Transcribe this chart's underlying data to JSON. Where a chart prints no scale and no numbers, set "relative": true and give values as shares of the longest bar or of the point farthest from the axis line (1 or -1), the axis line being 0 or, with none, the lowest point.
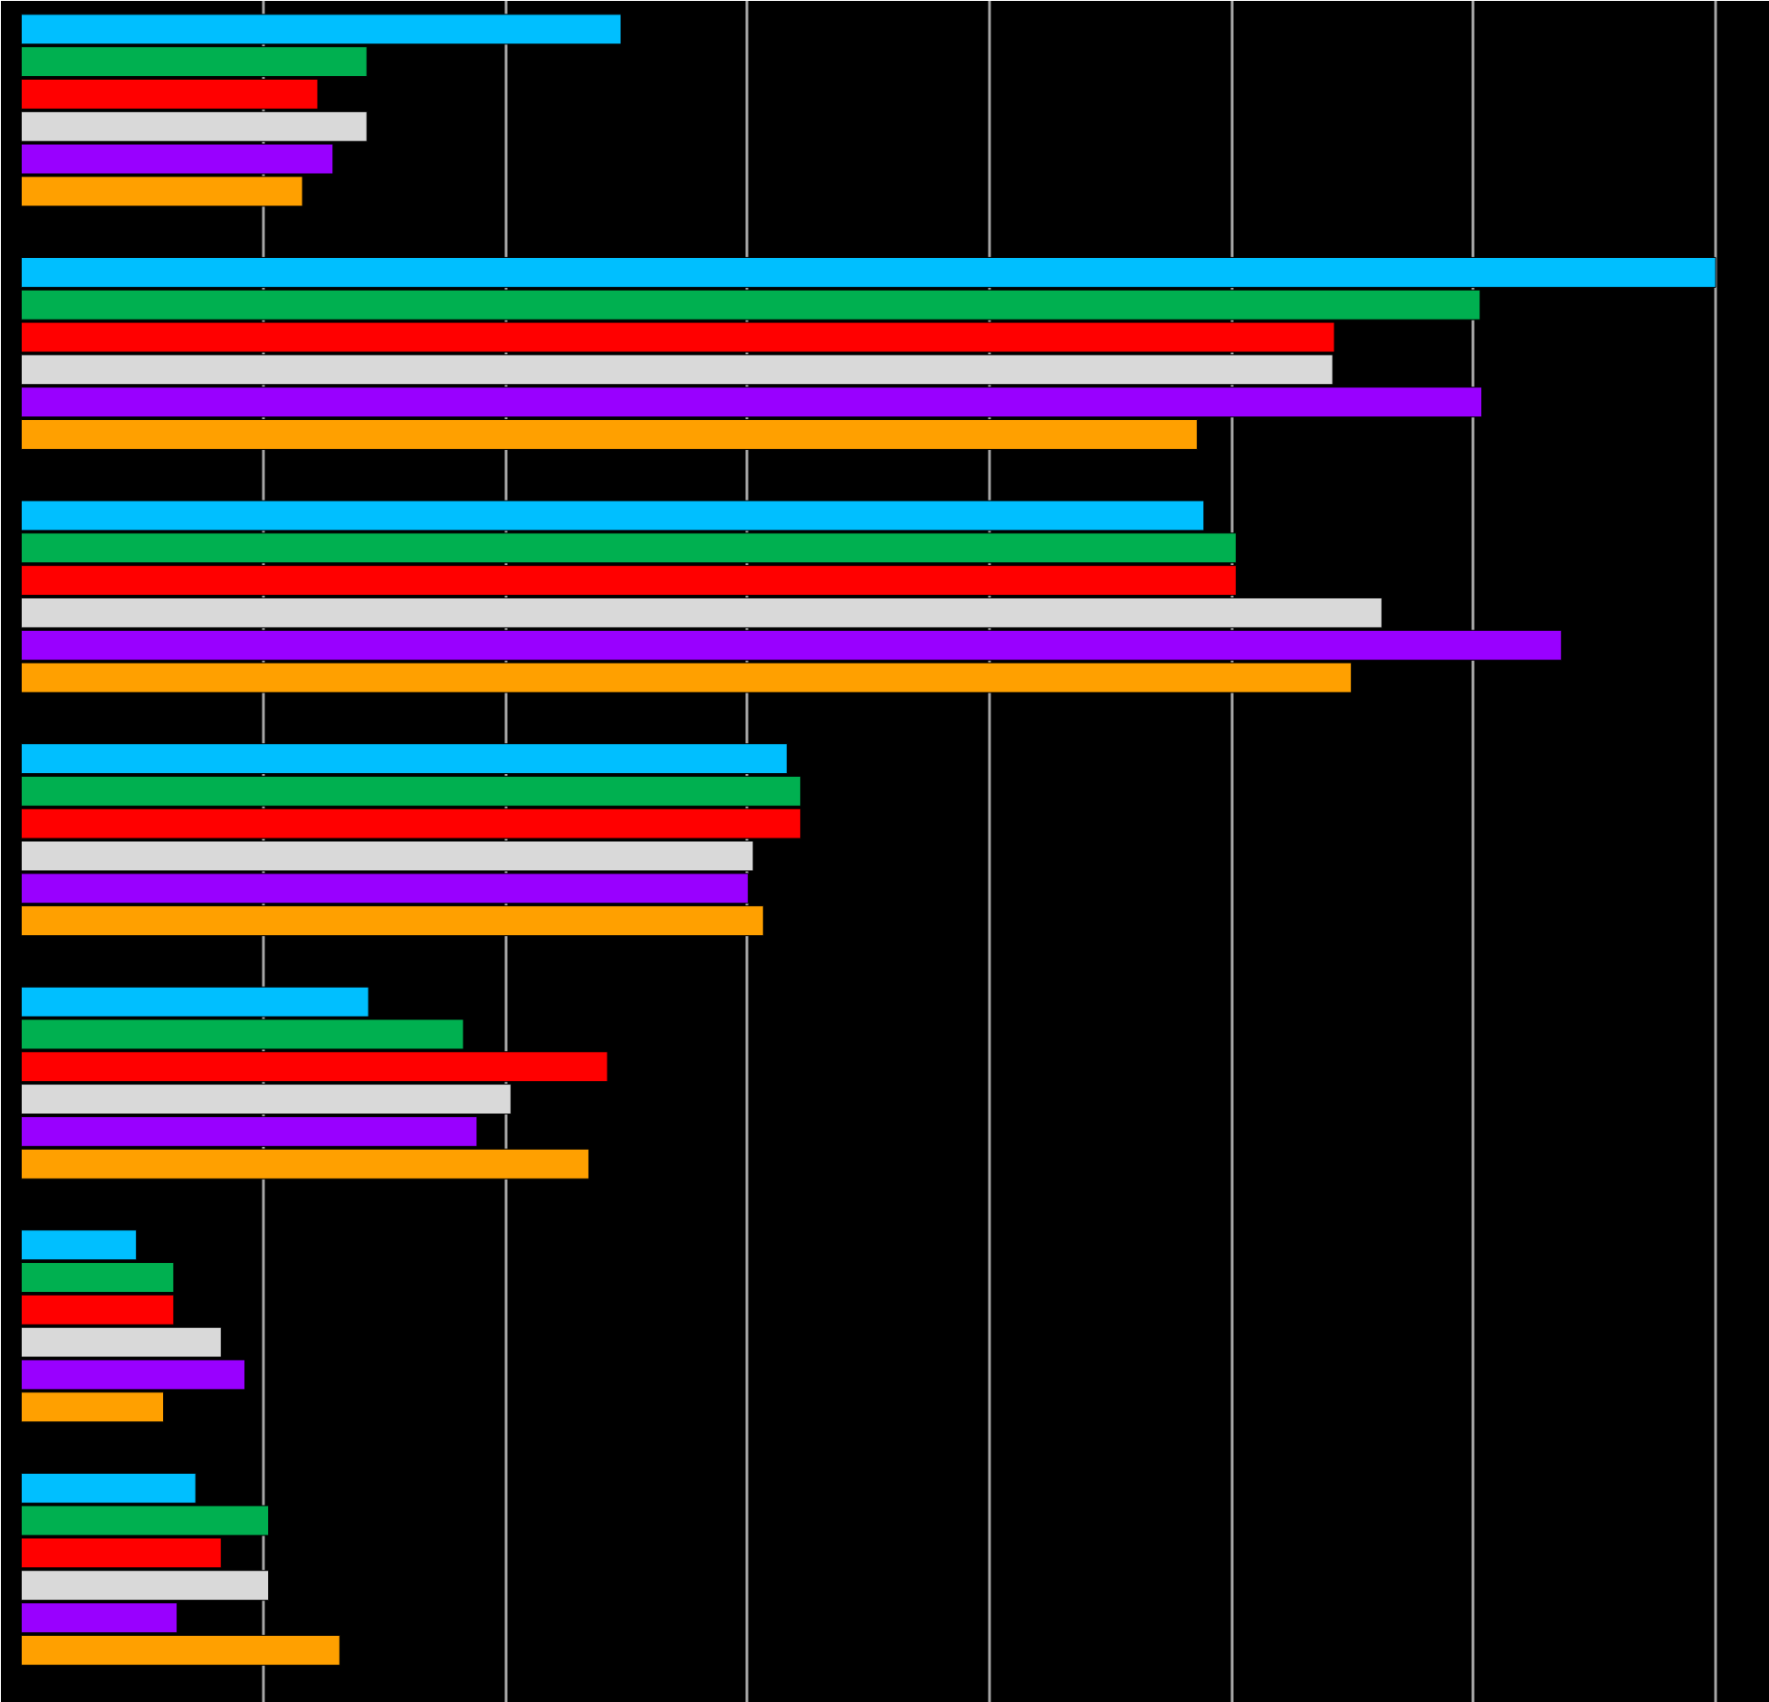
{
  "chart_data": {
    "type": "bar",
    "orientation": "horizontal",
    "relative": true,
    "grid": "x",
    "categories": [
      null,
      null,
      null,
      null,
      null,
      null,
      null
    ],
    "series": [
      {
        "color": "#00bfff",
        "values": [
          0.354,
          1.0,
          0.698,
          0.452,
          0.205,
          0.068,
          0.103
        ]
      },
      {
        "color": "#00b050",
        "values": [
          0.204,
          0.861,
          0.717,
          0.46,
          0.261,
          0.09,
          0.146
        ]
      },
      {
        "color": "#ff0000",
        "values": [
          0.175,
          0.775,
          0.717,
          0.46,
          0.346,
          0.09,
          0.118
        ]
      },
      {
        "color": "#d9d9d9",
        "values": [
          0.204,
          0.774,
          0.803,
          0.432,
          0.289,
          0.118,
          0.146
        ]
      },
      {
        "color": "#9900ff",
        "values": [
          0.184,
          0.862,
          0.909,
          0.429,
          0.269,
          0.132,
          0.092
        ]
      },
      {
        "color": "#ffa000",
        "values": [
          0.166,
          0.694,
          0.785,
          0.438,
          0.335,
          0.084,
          0.188
        ]
      }
    ]
  }
}
